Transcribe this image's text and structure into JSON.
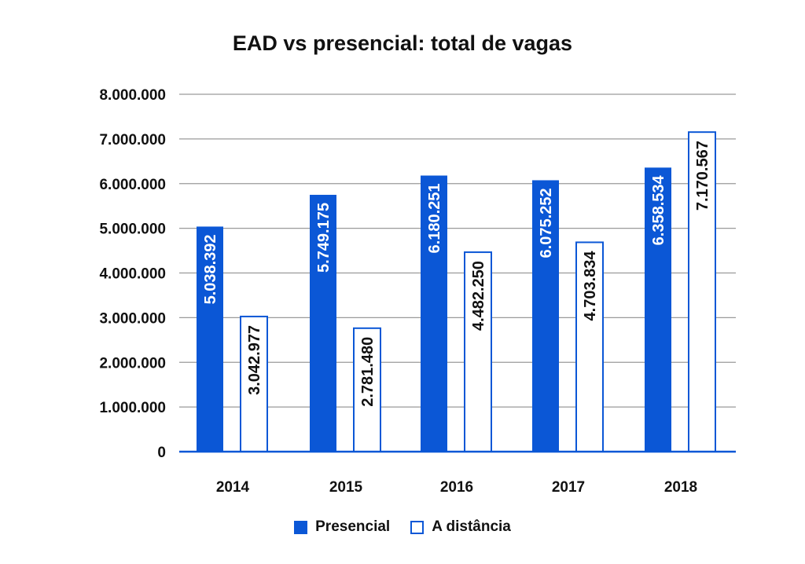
{
  "chart_data": {
    "type": "bar",
    "title": "EAD vs presencial: total de vagas",
    "xlabel": "",
    "ylabel": "",
    "categories": [
      "2014",
      "2015",
      "2016",
      "2017",
      "2018"
    ],
    "series": [
      {
        "name": "Presencial",
        "values": [
          5038392,
          5749175,
          6180251,
          6075252,
          6358534
        ],
        "labels": [
          "5.038.392",
          "5.749.175",
          "6.180.251",
          "6.075.252",
          "6.358.534"
        ],
        "color": "#0b57d6",
        "style": "filled"
      },
      {
        "name": "A distância",
        "values": [
          3042977,
          2781480,
          4482250,
          4703834,
          7170567
        ],
        "labels": [
          "3.042.977",
          "2.781.480",
          "4.482.250",
          "4.703.834",
          "7.170.567"
        ],
        "color": "#0b57d6",
        "style": "outline"
      }
    ],
    "ylim": [
      0,
      8000000
    ],
    "yticks": [
      0,
      1000000,
      2000000,
      3000000,
      4000000,
      5000000,
      6000000,
      7000000,
      8000000
    ],
    "ytick_labels": [
      "0",
      "1.000.000",
      "2.000.000",
      "3.000.000",
      "4.000.000",
      "5.000.000",
      "6.000.000",
      "7.000.000",
      "8.000.000"
    ],
    "grid": true,
    "legend_position": "bottom"
  }
}
